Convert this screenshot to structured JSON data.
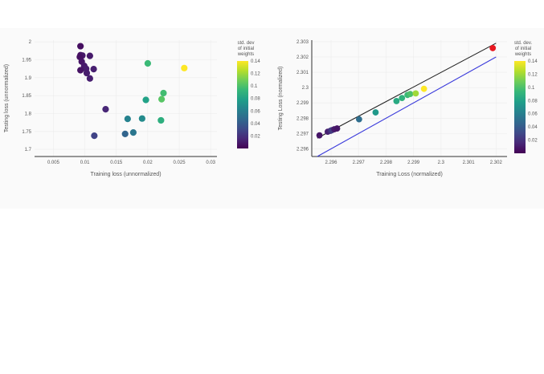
{
  "chart_data": [
    {
      "type": "scatter",
      "xlabel": "Training loss (unnormalized)",
      "ylabel": "Testing loss (unnormalized)",
      "xlim": [
        0.002,
        0.031
      ],
      "ylim": [
        1.68,
        2.005
      ],
      "xticks": [
        "0.005",
        "0.01",
        "0.015",
        "0.02",
        "0.025",
        "0.03"
      ],
      "yticks": [
        "1.7",
        "1.75",
        "1.8",
        "1.85",
        "1.9",
        "1.95",
        "2"
      ],
      "grid": true,
      "colorbar": {
        "title": [
          "std. dev",
          "of initial",
          "weights"
        ],
        "range": [
          0,
          0.14
        ],
        "ticks": [
          "0.02",
          "0.04",
          "0.06",
          "0.08",
          "0.1",
          "0.12",
          "0.14"
        ],
        "colorscale": "viridis"
      },
      "points": [
        {
          "x": 0.0093,
          "y": 1.988,
          "c": 0.005
        },
        {
          "x": 0.0093,
          "y": 1.963,
          "c": 0.007
        },
        {
          "x": 0.0096,
          "y": 1.962,
          "c": 0.009
        },
        {
          "x": 0.0092,
          "y": 1.958,
          "c": 0.006
        },
        {
          "x": 0.0108,
          "y": 1.961,
          "c": 0.01
        },
        {
          "x": 0.0095,
          "y": 1.945,
          "c": 0.008
        },
        {
          "x": 0.0099,
          "y": 1.933,
          "c": 0.01
        },
        {
          "x": 0.0102,
          "y": 1.925,
          "c": 0.011
        },
        {
          "x": 0.0093,
          "y": 1.921,
          "c": 0.007
        },
        {
          "x": 0.0114,
          "y": 1.924,
          "c": 0.012
        },
        {
          "x": 0.0103,
          "y": 1.913,
          "c": 0.011
        },
        {
          "x": 0.0108,
          "y": 1.898,
          "c": 0.012
        },
        {
          "x": 0.0133,
          "y": 1.812,
          "c": 0.015
        },
        {
          "x": 0.0115,
          "y": 1.738,
          "c": 0.028
        },
        {
          "x": 0.0168,
          "y": 1.785,
          "c": 0.062
        },
        {
          "x": 0.0164,
          "y": 1.743,
          "c": 0.045
        },
        {
          "x": 0.0177,
          "y": 1.747,
          "c": 0.055
        },
        {
          "x": 0.0191,
          "y": 1.786,
          "c": 0.067
        },
        {
          "x": 0.0197,
          "y": 1.838,
          "c": 0.08
        },
        {
          "x": 0.02,
          "y": 1.94,
          "c": 0.095
        },
        {
          "x": 0.0221,
          "y": 1.781,
          "c": 0.088
        },
        {
          "x": 0.0222,
          "y": 1.84,
          "c": 0.103
        },
        {
          "x": 0.0225,
          "y": 1.857,
          "c": 0.097
        },
        {
          "x": 0.0258,
          "y": 1.927,
          "c": 0.14
        }
      ]
    },
    {
      "type": "scatter",
      "xlabel": "Training Loss (normalized)",
      "ylabel": "Testing Loss (normalized)",
      "xlim": [
        2.2953,
        2.3024
      ],
      "ylim": [
        2.2955,
        2.3031
      ],
      "xticks": [
        "2.296",
        "2.297",
        "2.298",
        "2.299",
        "2.3",
        "2.301",
        "2.302"
      ],
      "yticks": [
        "2.296",
        "2.297",
        "2.298",
        "2.299",
        "2.3",
        "2.301",
        "2.302",
        "2.303"
      ],
      "grid": true,
      "lines": [
        {
          "color": "#222222",
          "points": [
            [
              2.2955,
              2.2967
            ],
            [
              2.302,
              2.3029
            ]
          ]
        },
        {
          "color": "#3b3bdb",
          "points": [
            [
              2.2955,
              2.2955
            ],
            [
              2.302,
              2.302
            ]
          ]
        }
      ],
      "colorbar": {
        "title": [
          "std. dev.",
          "of initial",
          "weights"
        ],
        "range": [
          0,
          0.14
        ],
        "ticks": [
          "0.02",
          "0.04",
          "0.06",
          "0.08",
          "0.1",
          "0.12",
          "0.14"
        ],
        "colorscale": "viridis"
      },
      "points": [
        {
          "x": 2.29558,
          "y": 2.29688,
          "c": 0.008
        },
        {
          "x": 2.29588,
          "y": 2.29712,
          "c": 0.012
        },
        {
          "x": 2.29598,
          "y": 2.29718,
          "c": 0.018
        },
        {
          "x": 2.29603,
          "y": 2.29722,
          "c": 0.025
        },
        {
          "x": 2.29612,
          "y": 2.29728,
          "c": 0.01
        },
        {
          "x": 2.29622,
          "y": 2.29733,
          "c": 0.008
        },
        {
          "x": 2.29702,
          "y": 2.29793,
          "c": 0.05
        },
        {
          "x": 2.29762,
          "y": 2.29838,
          "c": 0.075
        },
        {
          "x": 2.29838,
          "y": 2.29912,
          "c": 0.085
        },
        {
          "x": 2.29858,
          "y": 2.29932,
          "c": 0.09
        },
        {
          "x": 2.29878,
          "y": 2.29952,
          "c": 0.095
        },
        {
          "x": 2.29888,
          "y": 2.29958,
          "c": 0.1
        },
        {
          "x": 2.29908,
          "y": 2.29962,
          "c": 0.12
        },
        {
          "x": 2.29938,
          "y": 2.29992,
          "c": 0.14
        },
        {
          "x": 2.30188,
          "y": 2.30258,
          "c": 0.2,
          "color": "#e8171f"
        }
      ]
    }
  ]
}
